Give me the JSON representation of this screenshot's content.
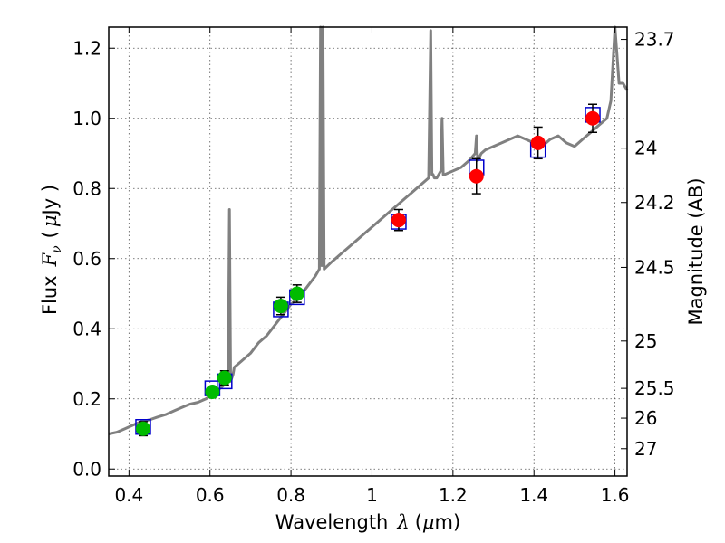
{
  "chart_data": {
    "type": "line",
    "title": "",
    "xlabel": "Wavelength",
    "xlabel_symbol": "λ",
    "xlabel_units_open": "(",
    "xlabel_units_mu": "μ",
    "xlabel_units_rest": "m)",
    "ylabel": "Flux",
    "ylabel_symbol": "F",
    "ylabel_subscript": "ν",
    "ylabel_units_open": "(",
    "ylabel_units_mu": "μ",
    "ylabel_units_rest": "Jy )",
    "y2label": "Magnitude (AB)",
    "xlim": [
      0.35,
      1.63
    ],
    "ylim": [
      -0.02,
      1.26
    ],
    "grid": true,
    "xticks": [
      {
        "value": 0.4,
        "label": "0.4"
      },
      {
        "value": 0.6,
        "label": "0.6"
      },
      {
        "value": 0.8,
        "label": "0.8"
      },
      {
        "value": 1.0,
        "label": "1"
      },
      {
        "value": 1.2,
        "label": "1.2"
      },
      {
        "value": 1.4,
        "label": "1.4"
      },
      {
        "value": 1.6,
        "label": "1.6"
      }
    ],
    "yticks": [
      {
        "value": 0.0,
        "label": "0.0"
      },
      {
        "value": 0.2,
        "label": "0.2"
      },
      {
        "value": 0.4,
        "label": "0.4"
      },
      {
        "value": 0.6,
        "label": "0.6"
      },
      {
        "value": 0.8,
        "label": "0.8"
      },
      {
        "value": 1.0,
        "label": "1.0"
      },
      {
        "value": 1.2,
        "label": "1.2"
      }
    ],
    "y2ticks": [
      {
        "flux": 1.225,
        "label": "23.7"
      },
      {
        "flux": 0.915,
        "label": "24"
      },
      {
        "flux": 0.76,
        "label": "24.2"
      },
      {
        "flux": 0.575,
        "label": "24.5"
      },
      {
        "flux": 0.365,
        "label": "25"
      },
      {
        "flux": 0.23,
        "label": "25.5"
      },
      {
        "flux": 0.145,
        "label": "26"
      },
      {
        "flux": 0.058,
        "label": "27"
      }
    ],
    "colors": {
      "model": "#808080",
      "optical": "#00bb00",
      "nir": "#ff0000",
      "model_box": "#0000cc",
      "errorbar": "#000000",
      "grid": "#555555"
    },
    "series": [
      {
        "name": "model_sed",
        "kind": "line",
        "x": [
          0.35,
          0.37,
          0.39,
          0.41,
          0.43,
          0.45,
          0.47,
          0.49,
          0.51,
          0.53,
          0.55,
          0.57,
          0.59,
          0.61,
          0.63,
          0.645,
          0.648,
          0.651,
          0.654,
          0.657,
          0.66,
          0.68,
          0.7,
          0.72,
          0.74,
          0.76,
          0.78,
          0.8,
          0.82,
          0.84,
          0.86,
          0.87,
          0.873,
          0.876,
          0.879,
          0.882,
          0.9,
          0.92,
          0.94,
          0.96,
          0.98,
          1.0,
          1.02,
          1.04,
          1.06,
          1.08,
          1.1,
          1.12,
          1.14,
          1.145,
          1.148,
          1.151,
          1.154,
          1.16,
          1.17,
          1.173,
          1.176,
          1.18,
          1.2,
          1.22,
          1.24,
          1.255,
          1.258,
          1.261,
          1.27,
          1.28,
          1.3,
          1.32,
          1.34,
          1.36,
          1.38,
          1.4,
          1.42,
          1.44,
          1.46,
          1.48,
          1.5,
          1.52,
          1.54,
          1.56,
          1.58,
          1.59,
          1.6,
          1.61,
          1.62,
          1.63
        ],
        "y": [
          0.1,
          0.105,
          0.115,
          0.125,
          0.135,
          0.14,
          0.148,
          0.155,
          0.165,
          0.175,
          0.185,
          0.19,
          0.2,
          0.215,
          0.235,
          0.25,
          0.74,
          0.25,
          0.26,
          0.27,
          0.29,
          0.31,
          0.33,
          0.36,
          0.38,
          0.41,
          0.44,
          0.47,
          0.49,
          0.52,
          0.55,
          0.57,
          1.26,
          0.58,
          1.26,
          0.57,
          0.59,
          0.61,
          0.63,
          0.65,
          0.67,
          0.69,
          0.71,
          0.73,
          0.75,
          0.77,
          0.79,
          0.81,
          0.83,
          1.25,
          0.84,
          0.84,
          0.83,
          0.83,
          0.85,
          1.0,
          0.84,
          0.84,
          0.85,
          0.86,
          0.88,
          0.9,
          0.95,
          0.88,
          0.9,
          0.91,
          0.92,
          0.93,
          0.94,
          0.95,
          0.94,
          0.93,
          0.92,
          0.94,
          0.95,
          0.93,
          0.92,
          0.94,
          0.96,
          0.98,
          1.0,
          1.05,
          1.26,
          1.1,
          1.1,
          1.08
        ]
      },
      {
        "name": "optical_photometry",
        "kind": "scatter",
        "x": [
          0.435,
          0.606,
          0.636,
          0.775,
          0.815
        ],
        "y": [
          0.115,
          0.22,
          0.26,
          0.465,
          0.5
        ],
        "yerr": [
          0.02,
          0.015,
          0.02,
          0.025,
          0.025
        ],
        "model_y": [
          0.12,
          0.23,
          0.25,
          0.455,
          0.49
        ]
      },
      {
        "name": "nir_photometry",
        "kind": "scatter",
        "x": [
          1.066,
          1.258,
          1.41,
          1.545
        ],
        "y": [
          0.71,
          0.835,
          0.93,
          1.0
        ],
        "yerr": [
          0.03,
          0.05,
          0.045,
          0.04
        ],
        "model_y": [
          0.705,
          0.86,
          0.91,
          1.01
        ]
      }
    ]
  }
}
